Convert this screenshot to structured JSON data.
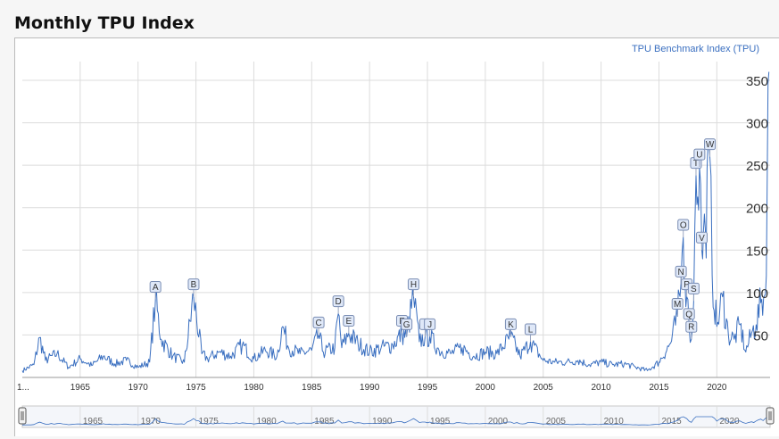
{
  "title": "Monthly TPU Index",
  "colors": {
    "line": "#3a6fc0",
    "grid": "#dcdcdc",
    "annotation_fill": "#dfe8f8",
    "annotation_stroke": "#7a8db3",
    "text": "#333333"
  },
  "chart_data": {
    "type": "line",
    "title": "Monthly TPU Index",
    "legend_label": "TPU Benchmark Index (TPU)",
    "legend_position": "top-right",
    "series": [
      {
        "name": "TPU Benchmark Index (TPU)",
        "points": [
          [
            1960.0,
            8
          ],
          [
            1961.0,
            15
          ],
          [
            1961.5,
            47
          ],
          [
            1962.0,
            20
          ],
          [
            1963.0,
            28
          ],
          [
            1964.0,
            12
          ],
          [
            1965.0,
            22
          ],
          [
            1966.0,
            14
          ],
          [
            1967.0,
            25
          ],
          [
            1968.0,
            16
          ],
          [
            1969.0,
            20
          ],
          [
            1970.0,
            12
          ],
          [
            1971.0,
            18
          ],
          [
            1971.5,
            92
          ],
          [
            1972.0,
            45
          ],
          [
            1973.0,
            25
          ],
          [
            1974.0,
            18
          ],
          [
            1974.8,
            95
          ],
          [
            1975.5,
            28
          ],
          [
            1976.0,
            22
          ],
          [
            1977.0,
            30
          ],
          [
            1978.0,
            25
          ],
          [
            1979.0,
            38
          ],
          [
            1980.0,
            22
          ],
          [
            1981.0,
            32
          ],
          [
            1982.0,
            25
          ],
          [
            1982.5,
            60
          ],
          [
            1983.0,
            35
          ],
          [
            1984.0,
            28
          ],
          [
            1985.0,
            32
          ],
          [
            1985.6,
            50
          ],
          [
            1986.0,
            30
          ],
          [
            1987.0,
            35
          ],
          [
            1987.3,
            75
          ],
          [
            1987.6,
            35
          ],
          [
            1988.2,
            52
          ],
          [
            1989.0,
            40
          ],
          [
            1990.0,
            30
          ],
          [
            1991.0,
            35
          ],
          [
            1992.0,
            38
          ],
          [
            1992.8,
            52
          ],
          [
            1993.2,
            48
          ],
          [
            1993.8,
            95
          ],
          [
            1994.3,
            42
          ],
          [
            1994.8,
            48
          ],
          [
            1995.2,
            48
          ],
          [
            1996.0,
            32
          ],
          [
            1997.0,
            28
          ],
          [
            1998.0,
            35
          ],
          [
            1999.0,
            25
          ],
          [
            2000.0,
            30
          ],
          [
            2001.0,
            28
          ],
          [
            2002.2,
            48
          ],
          [
            2003.0,
            25
          ],
          [
            2003.9,
            42
          ],
          [
            2005.0,
            20
          ],
          [
            2006.0,
            18
          ],
          [
            2007.0,
            18
          ],
          [
            2008.0,
            20
          ],
          [
            2009.0,
            15
          ],
          [
            2010.0,
            18
          ],
          [
            2011.0,
            15
          ],
          [
            2012.0,
            16
          ],
          [
            2013.0,
            12
          ],
          [
            2014.0,
            8
          ],
          [
            2015.0,
            18
          ],
          [
            2016.0,
            40
          ],
          [
            2016.6,
            72
          ],
          [
            2016.9,
            110
          ],
          [
            2017.1,
            165
          ],
          [
            2017.4,
            95
          ],
          [
            2017.6,
            60
          ],
          [
            2017.8,
            45
          ],
          [
            2018.0,
            90
          ],
          [
            2018.2,
            238
          ],
          [
            2018.5,
            248
          ],
          [
            2018.7,
            150
          ],
          [
            2019.0,
            175
          ],
          [
            2019.4,
            260
          ],
          [
            2019.6,
            120
          ],
          [
            2020.0,
            60
          ],
          [
            2020.5,
            95
          ],
          [
            2021.0,
            50
          ],
          [
            2021.5,
            45
          ],
          [
            2022.0,
            62
          ],
          [
            2022.5,
            30
          ],
          [
            2023.0,
            52
          ],
          [
            2023.4,
            62
          ],
          [
            2023.8,
            88
          ],
          [
            2024.2,
            98
          ],
          [
            2024.5,
            360
          ]
        ]
      }
    ],
    "annotations": [
      {
        "label": "A",
        "x": 1971.5,
        "y": 92
      },
      {
        "label": "B",
        "x": 1974.8,
        "y": 95
      },
      {
        "label": "C",
        "x": 1985.6,
        "y": 50
      },
      {
        "label": "D",
        "x": 1987.3,
        "y": 75
      },
      {
        "label": "E",
        "x": 1988.2,
        "y": 52
      },
      {
        "label": "F",
        "x": 1992.8,
        "y": 52
      },
      {
        "label": "G",
        "x": 1993.2,
        "y": 48
      },
      {
        "label": "H",
        "x": 1993.8,
        "y": 95
      },
      {
        "label": "I",
        "x": 1994.8,
        "y": 48
      },
      {
        "label": "J",
        "x": 1995.2,
        "y": 48
      },
      {
        "label": "K",
        "x": 2002.2,
        "y": 48
      },
      {
        "label": "L",
        "x": 2003.9,
        "y": 42
      },
      {
        "label": "M",
        "x": 2016.6,
        "y": 72
      },
      {
        "label": "N",
        "x": 2016.9,
        "y": 110
      },
      {
        "label": "O",
        "x": 2017.1,
        "y": 165
      },
      {
        "label": "P",
        "x": 2017.4,
        "y": 95
      },
      {
        "label": "Q",
        "x": 2017.6,
        "y": 60
      },
      {
        "label": "R",
        "x": 2017.8,
        "y": 45
      },
      {
        "label": "S",
        "x": 2018.0,
        "y": 90
      },
      {
        "label": "T",
        "x": 2018.2,
        "y": 238
      },
      {
        "label": "U",
        "x": 2018.5,
        "y": 248
      },
      {
        "label": "V",
        "x": 2018.7,
        "y": 150
      },
      {
        "label": "W",
        "x": 2019.4,
        "y": 260
      }
    ],
    "xlim": [
      1960,
      2024.6
    ],
    "ylim": [
      0,
      370
    ],
    "x_tick_labels": [
      "1...",
      "1965",
      "1970",
      "1975",
      "1980",
      "1985",
      "1990",
      "1995",
      "2000",
      "2005",
      "2010",
      "2015",
      "2020"
    ],
    "y_ticks": [
      50,
      100,
      150,
      200,
      250,
      300,
      350
    ],
    "navigator_tick_labels": [
      "1965",
      "1970",
      "1975",
      "1980",
      "1985",
      "1990",
      "1995",
      "2000",
      "2005",
      "2010",
      "2015",
      "2020"
    ],
    "grid": true
  }
}
